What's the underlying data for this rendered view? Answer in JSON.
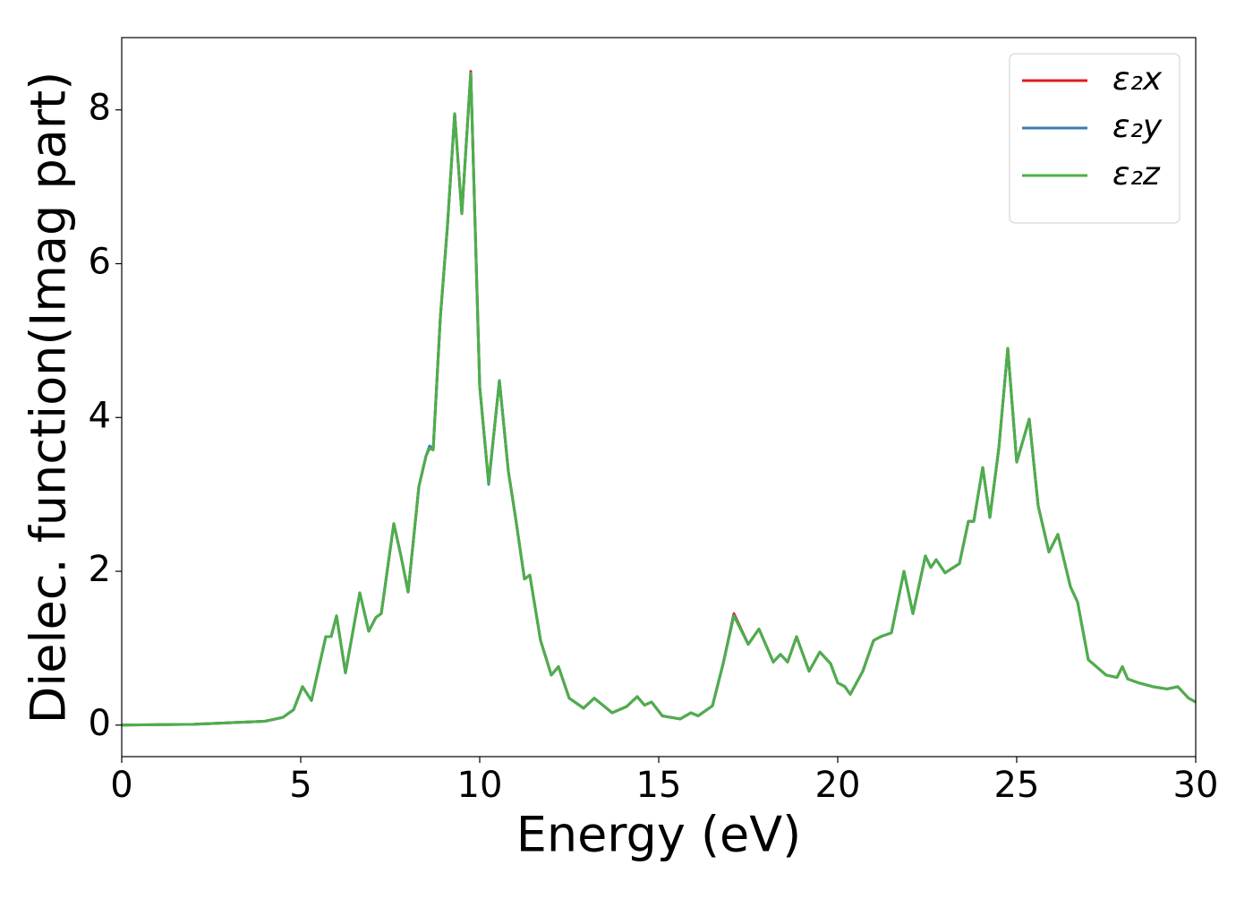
{
  "chart_data": {
    "type": "line",
    "xlabel": "Energy (eV)",
    "ylabel": "Dielec. function(Imag part)",
    "x": [
      0,
      2,
      4,
      4.5,
      4.8,
      5.05,
      5.3,
      5.7,
      5.85,
      6.0,
      6.25,
      6.65,
      6.9,
      7.1,
      7.25,
      7.6,
      7.8,
      8.0,
      8.3,
      8.5,
      8.6,
      8.7,
      8.9,
      9.1,
      9.3,
      9.5,
      9.75,
      10.0,
      10.25,
      10.55,
      10.8,
      11.0,
      11.25,
      11.4,
      11.7,
      12.0,
      12.2,
      12.5,
      12.9,
      13.2,
      13.7,
      14.1,
      14.4,
      14.6,
      14.8,
      15.1,
      15.6,
      15.9,
      16.1,
      16.5,
      16.8,
      17.1,
      17.5,
      17.8,
      18.2,
      18.4,
      18.6,
      18.85,
      19.2,
      19.5,
      19.8,
      20.0,
      20.2,
      20.35,
      20.7,
      21.0,
      21.2,
      21.5,
      21.85,
      22.1,
      22.45,
      22.6,
      22.75,
      23.0,
      23.4,
      23.65,
      23.8,
      24.05,
      24.25,
      24.5,
      24.75,
      25.0,
      25.35,
      25.6,
      25.9,
      26.15,
      26.5,
      26.7,
      27.0,
      27.5,
      27.8,
      27.95,
      28.1,
      28.4,
      28.8,
      29.2,
      29.5,
      29.8,
      30.0
    ],
    "series": [
      {
        "name": "ε₂x",
        "color": "#e41a1c",
        "values": [
          0.0,
          0.01,
          0.05,
          0.1,
          0.2,
          0.5,
          0.32,
          1.15,
          1.15,
          1.42,
          0.68,
          1.72,
          1.22,
          1.4,
          1.45,
          2.62,
          2.2,
          1.73,
          3.1,
          3.5,
          3.6,
          3.58,
          5.3,
          6.5,
          7.95,
          6.65,
          8.5,
          4.4,
          3.15,
          4.48,
          3.3,
          2.7,
          1.9,
          1.95,
          1.1,
          0.65,
          0.76,
          0.35,
          0.22,
          0.35,
          0.16,
          0.24,
          0.37,
          0.26,
          0.3,
          0.12,
          0.08,
          0.16,
          0.12,
          0.25,
          0.8,
          1.45,
          1.05,
          1.25,
          0.82,
          0.92,
          0.82,
          1.15,
          0.7,
          0.95,
          0.8,
          0.55,
          0.5,
          0.4,
          0.7,
          1.1,
          1.15,
          1.2,
          2.0,
          1.45,
          2.2,
          2.05,
          2.15,
          1.98,
          2.1,
          2.65,
          2.65,
          3.35,
          2.7,
          3.6,
          4.9,
          3.42,
          3.98,
          2.85,
          2.25,
          2.48,
          1.8,
          1.6,
          0.85,
          0.65,
          0.62,
          0.76,
          0.6,
          0.55,
          0.5,
          0.47,
          0.5,
          0.35,
          0.3
        ]
      },
      {
        "name": "ε₂y",
        "color": "#377eb8",
        "values": [
          0.0,
          0.01,
          0.05,
          0.1,
          0.2,
          0.5,
          0.32,
          1.15,
          1.15,
          1.42,
          0.68,
          1.72,
          1.22,
          1.4,
          1.45,
          2.62,
          2.2,
          1.73,
          3.1,
          3.5,
          3.63,
          3.58,
          5.3,
          6.5,
          7.95,
          6.65,
          8.48,
          4.4,
          3.13,
          4.48,
          3.3,
          2.7,
          1.9,
          1.95,
          1.1,
          0.65,
          0.76,
          0.35,
          0.22,
          0.35,
          0.16,
          0.24,
          0.37,
          0.26,
          0.3,
          0.12,
          0.08,
          0.16,
          0.12,
          0.25,
          0.8,
          1.43,
          1.05,
          1.25,
          0.82,
          0.92,
          0.82,
          1.15,
          0.7,
          0.95,
          0.8,
          0.55,
          0.5,
          0.4,
          0.7,
          1.1,
          1.15,
          1.2,
          2.0,
          1.45,
          2.2,
          2.05,
          2.15,
          1.98,
          2.1,
          2.65,
          2.65,
          3.35,
          2.7,
          3.6,
          4.9,
          3.42,
          3.98,
          2.85,
          2.25,
          2.48,
          1.8,
          1.6,
          0.85,
          0.65,
          0.62,
          0.76,
          0.6,
          0.55,
          0.5,
          0.47,
          0.5,
          0.35,
          0.3
        ]
      },
      {
        "name": "ε₂z",
        "color": "#4daf4a",
        "values": [
          0.0,
          0.01,
          0.05,
          0.1,
          0.2,
          0.5,
          0.32,
          1.15,
          1.15,
          1.42,
          0.68,
          1.72,
          1.22,
          1.4,
          1.45,
          2.62,
          2.2,
          1.73,
          3.1,
          3.5,
          3.6,
          3.58,
          5.3,
          6.5,
          7.95,
          6.65,
          8.47,
          4.4,
          3.15,
          4.48,
          3.3,
          2.7,
          1.9,
          1.95,
          1.1,
          0.65,
          0.76,
          0.35,
          0.22,
          0.35,
          0.16,
          0.24,
          0.37,
          0.26,
          0.3,
          0.12,
          0.08,
          0.16,
          0.12,
          0.25,
          0.8,
          1.42,
          1.05,
          1.25,
          0.82,
          0.92,
          0.82,
          1.15,
          0.7,
          0.95,
          0.8,
          0.55,
          0.5,
          0.4,
          0.7,
          1.1,
          1.15,
          1.2,
          2.0,
          1.45,
          2.2,
          2.05,
          2.15,
          1.98,
          2.1,
          2.65,
          2.65,
          3.35,
          2.7,
          3.6,
          4.9,
          3.42,
          3.98,
          2.85,
          2.25,
          2.48,
          1.8,
          1.6,
          0.85,
          0.65,
          0.62,
          0.76,
          0.6,
          0.55,
          0.5,
          0.47,
          0.5,
          0.35,
          0.3
        ]
      }
    ],
    "xlim": [
      0,
      30
    ],
    "ylim": [
      -0.41,
      8.94
    ],
    "xticks": [
      0,
      5,
      10,
      15,
      20,
      25,
      30
    ],
    "yticks": [
      0,
      2,
      4,
      6,
      8
    ],
    "grid": false,
    "legend": "upper right"
  }
}
